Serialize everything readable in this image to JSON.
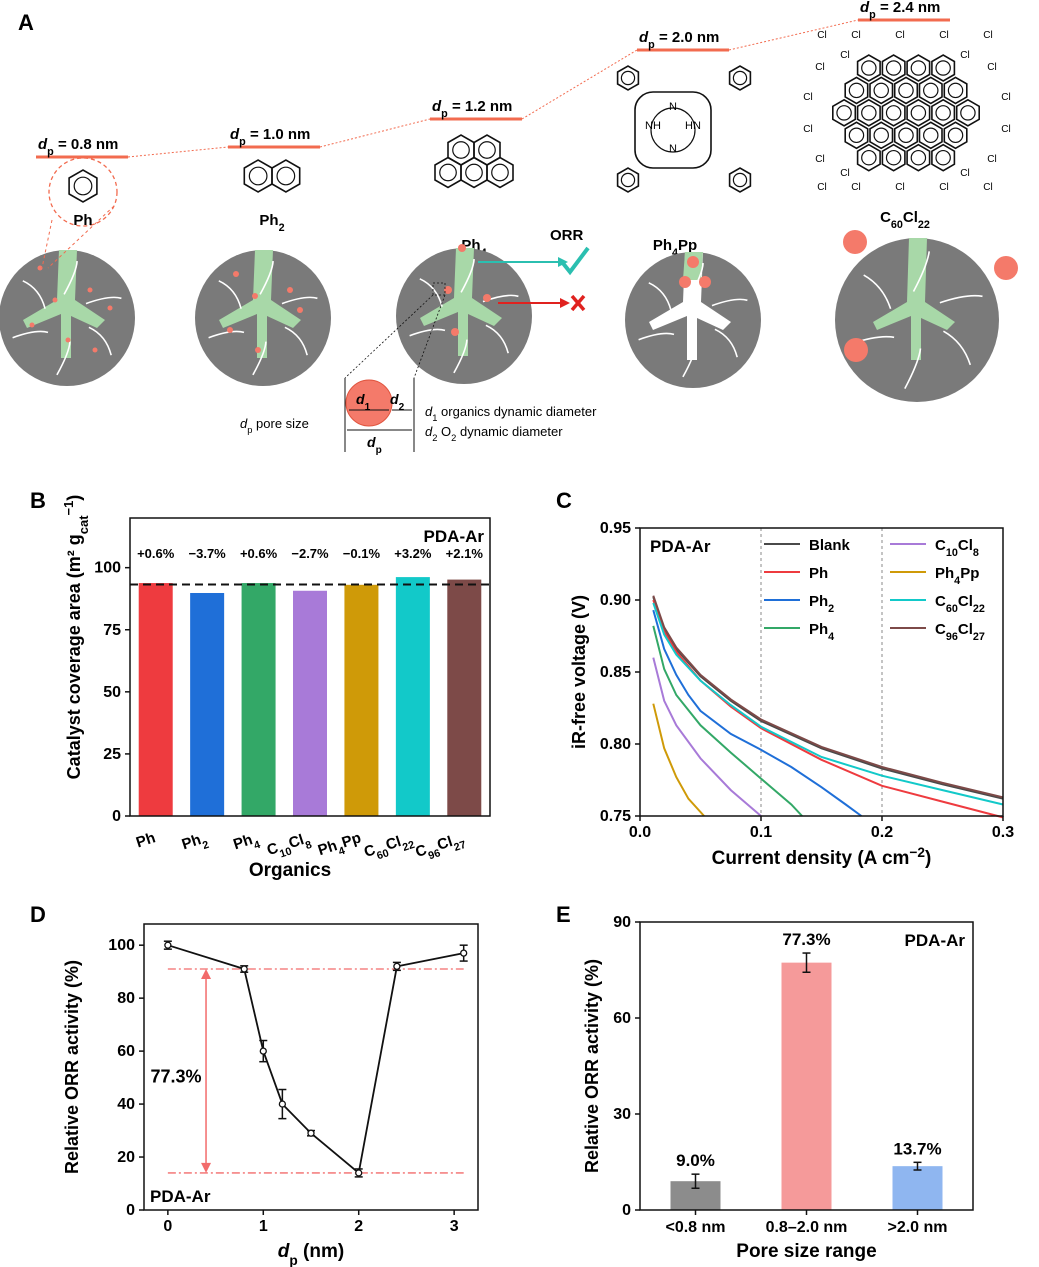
{
  "panels": {
    "a": "A",
    "b": "B",
    "c": "C",
    "d": "D",
    "e": "E"
  },
  "panel_a": {
    "levels": [
      {
        "sym": "d",
        "sub": "p",
        "value": "= 0.8 nm"
      },
      {
        "sym": "d",
        "sub": "p",
        "value": "= 1.0 nm"
      },
      {
        "sym": "d",
        "sub": "p",
        "value": "= 1.2 nm"
      },
      {
        "sym": "d",
        "sub": "p",
        "value": "= 2.0 nm"
      },
      {
        "sym": "d",
        "sub": "p",
        "value": "= 2.4 nm"
      }
    ],
    "molecules": [
      {
        "base": "Ph",
        "sub": "",
        "tail": ""
      },
      {
        "base": "Ph",
        "sub": "2",
        "tail": ""
      },
      {
        "base": "Ph",
        "sub": "4",
        "tail": ""
      },
      {
        "base": "Ph",
        "sub": "4",
        "tail": "Pp"
      },
      {
        "base": "C",
        "sub": "60",
        "tail": "Cl",
        "sub2": "22"
      }
    ],
    "orr_label": "ORR",
    "nh_labels": [
      "NH",
      "HN",
      "N",
      "N"
    ],
    "cl_label": "Cl",
    "legend": {
      "pore_size": "pore size",
      "d1_text": "organics dynamic diameter",
      "d2_text": "dynamic diameter",
      "d2_species": "O",
      "d2_species_sub": "2"
    }
  },
  "chart_data": [
    {
      "panel": "B",
      "type": "bar",
      "title": "PDA-Ar",
      "ylabel": "Catalyst coverage area (m² g",
      "ylabel_sub": "cat",
      "ylabel_sup": "−1",
      "ylabel_close": ")",
      "xlabel": "Organics",
      "ylim": [
        0,
        120
      ],
      "yticks": [
        0,
        25,
        50,
        75,
        100
      ],
      "reference_line": 93.2,
      "categories": [
        {
          "base": "Ph",
          "sub": "",
          "tail": "",
          "sub2": ""
        },
        {
          "base": "Ph",
          "sub": "2",
          "tail": "",
          "sub2": ""
        },
        {
          "base": "Ph",
          "sub": "4",
          "tail": "",
          "sub2": ""
        },
        {
          "base": "C",
          "sub": "10",
          "tail": "Cl",
          "sub2": "8"
        },
        {
          "base": "Ph",
          "sub": "4",
          "tail": "Pp",
          "sub2": ""
        },
        {
          "base": "C",
          "sub": "60",
          "tail": "Cl",
          "sub2": "22"
        },
        {
          "base": "C",
          "sub": "96",
          "tail": "Cl",
          "sub2": "27"
        }
      ],
      "values": [
        93.8,
        89.8,
        93.8,
        90.7,
        93.1,
        96.2,
        95.2
      ],
      "labels": [
        "+0.6%",
        "−3.7%",
        "+0.6%",
        "−2.7%",
        "−0.1%",
        "+3.2%",
        "+2.1%"
      ],
      "colors": [
        "#ee3b3f",
        "#1f6fd8",
        "#33a867",
        "#a87ad8",
        "#cf9a08",
        "#12c9c9",
        "#7d4a48"
      ]
    },
    {
      "panel": "C",
      "type": "line",
      "title": "PDA-Ar",
      "xlabel": "Current density (A cm",
      "xlabel_sup": "−2",
      "xlabel_close": ")",
      "ylabel": "iR-free voltage (V)",
      "xlim": [
        0,
        0.3
      ],
      "ylim": [
        0.75,
        0.95
      ],
      "xticks": [
        0,
        0.1,
        0.2,
        0.3
      ],
      "xtick_labels": [
        "0.0",
        "0.1",
        "0.2",
        "0.3"
      ],
      "yticks": [
        0.75,
        0.8,
        0.85,
        0.9,
        0.95
      ],
      "ytick_labels": [
        "0.75",
        "0.80",
        "0.85",
        "0.90",
        "0.95"
      ],
      "grid": "vertical dashed",
      "series": [
        {
          "name": "Blank",
          "sub": "",
          "tail": "",
          "sub2": "",
          "color": "#4a4a4a",
          "x": [
            0.011,
            0.02,
            0.03,
            0.05,
            0.075,
            0.1,
            0.15,
            0.2,
            0.25,
            0.3
          ],
          "y": [
            0.902,
            0.88,
            0.866,
            0.847,
            0.83,
            0.816,
            0.797,
            0.783,
            0.772,
            0.762
          ]
        },
        {
          "name": "Ph",
          "sub": "",
          "tail": "",
          "sub2": "",
          "color": "#ee3b3f",
          "x": [
            0.011,
            0.02,
            0.03,
            0.05,
            0.075,
            0.1,
            0.15,
            0.2,
            0.25,
            0.3
          ],
          "y": [
            0.9,
            0.878,
            0.864,
            0.844,
            0.826,
            0.811,
            0.789,
            0.771,
            0.76,
            0.749
          ]
        },
        {
          "name": "Ph",
          "sub": "2",
          "tail": "",
          "sub2": "",
          "color": "#1f6fd8",
          "x": [
            0.011,
            0.02,
            0.03,
            0.04,
            0.05,
            0.075,
            0.1,
            0.125,
            0.15,
            0.17,
            0.183
          ],
          "y": [
            0.893,
            0.866,
            0.848,
            0.834,
            0.823,
            0.807,
            0.796,
            0.784,
            0.77,
            0.758,
            0.75
          ]
        },
        {
          "name": "Ph",
          "sub": "4",
          "tail": "",
          "sub2": "",
          "color": "#33a867",
          "x": [
            0.011,
            0.02,
            0.03,
            0.05,
            0.075,
            0.1,
            0.125,
            0.134
          ],
          "y": [
            0.882,
            0.852,
            0.834,
            0.813,
            0.794,
            0.776,
            0.758,
            0.75
          ]
        },
        {
          "name": "C",
          "sub": "10",
          "tail": "Cl",
          "sub2": "8",
          "color": "#a87ad8",
          "x": [
            0.011,
            0.02,
            0.03,
            0.05,
            0.075,
            0.1
          ],
          "y": [
            0.86,
            0.83,
            0.813,
            0.79,
            0.768,
            0.75
          ]
        },
        {
          "name": "Ph",
          "sub": "4",
          "tail": "Pp",
          "sub2": "",
          "color": "#cf9a08",
          "x": [
            0.011,
            0.02,
            0.03,
            0.04,
            0.053
          ],
          "y": [
            0.828,
            0.797,
            0.777,
            0.762,
            0.75
          ]
        },
        {
          "name": "C",
          "sub": "60",
          "tail": "Cl",
          "sub2": "22",
          "color": "#12c9c9",
          "x": [
            0.011,
            0.02,
            0.03,
            0.05,
            0.075,
            0.1,
            0.15,
            0.2,
            0.25,
            0.3
          ],
          "y": [
            0.898,
            0.876,
            0.862,
            0.844,
            0.827,
            0.812,
            0.791,
            0.778,
            0.768,
            0.758
          ]
        },
        {
          "name": "C",
          "sub": "96",
          "tail": "Cl",
          "sub2": "27",
          "color": "#7d4a48",
          "x": [
            0.011,
            0.02,
            0.03,
            0.05,
            0.075,
            0.1,
            0.15,
            0.2,
            0.25,
            0.3
          ],
          "y": [
            0.903,
            0.881,
            0.867,
            0.848,
            0.831,
            0.817,
            0.798,
            0.784,
            0.773,
            0.763
          ]
        }
      ]
    },
    {
      "panel": "D",
      "type": "line",
      "title": "PDA-Ar",
      "xlabel": "d",
      "xlabel_sub": "p",
      "xlabel_tail": " (nm)",
      "ylabel": "Relative ORR activity (%)",
      "xlim": [
        -0.25,
        3.25
      ],
      "ylim": [
        0,
        108
      ],
      "xticks": [
        0,
        1,
        2,
        3
      ],
      "yticks": [
        0,
        20,
        40,
        60,
        80,
        100
      ],
      "x": [
        0,
        0.8,
        1.0,
        1.2,
        1.5,
        2.0,
        2.4,
        3.1
      ],
      "y": [
        100,
        91,
        60,
        40,
        29,
        14,
        92,
        97
      ],
      "err": [
        1.5,
        1.2,
        4,
        5.5,
        1,
        1.5,
        1.5,
        3
      ],
      "annotation": "77.3%",
      "hline_upper": 91,
      "hline_lower": 14
    },
    {
      "panel": "E",
      "type": "bar",
      "title": "PDA-Ar",
      "xlabel": "Pore size range",
      "ylabel": "Relative ORR activity (%)",
      "ylim": [
        0,
        90
      ],
      "yticks": [
        0,
        30,
        60,
        90
      ],
      "categories": [
        "<0.8 nm",
        "0.8–2.0 nm",
        ">2.0 nm"
      ],
      "values": [
        9.0,
        77.3,
        13.7
      ],
      "err": [
        2.2,
        3,
        1.2
      ],
      "labels": [
        "9.0%",
        "77.3%",
        "13.7%"
      ],
      "colors": [
        "#8c8c8c",
        "#f59a9a",
        "#8fb6f0"
      ]
    }
  ]
}
